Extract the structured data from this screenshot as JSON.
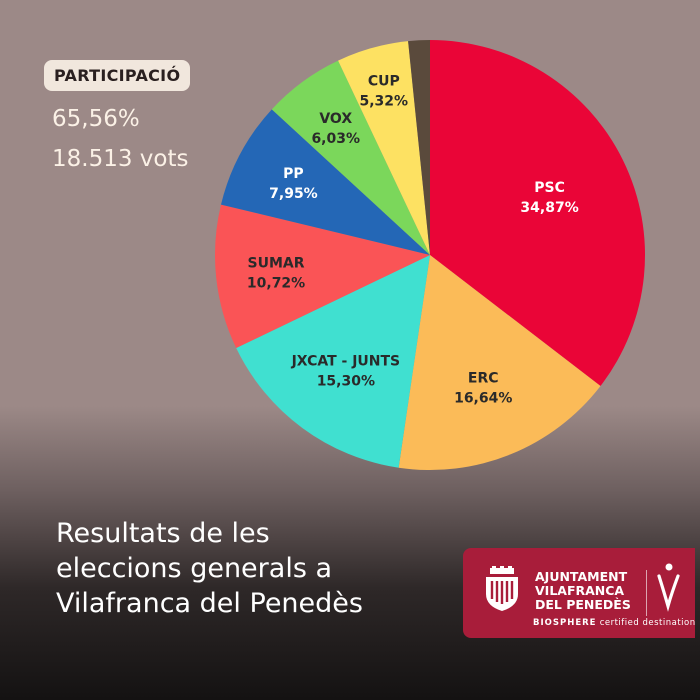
{
  "participation": {
    "badge_label": "PARTICIPACIÓ",
    "percentage": "65,56%",
    "votes": "18.513 vots"
  },
  "headline": {
    "line1": "Resultats de les",
    "line2": "eleccions generals a",
    "line3": "Vilafranca del Penedès"
  },
  "logo": {
    "org_line1": "AJUNTAMENT",
    "org_line2": "VILAFRANCA",
    "org_line3": "DEL PENEDÈS",
    "tag_strong": "BIOSPHERE",
    "tag_rest": "certified destination"
  },
  "chart_data": {
    "type": "pie",
    "title": "",
    "start_angle_deg": 0,
    "slices": [
      {
        "name": "PSC",
        "value": 34.87,
        "label": "34,87%",
        "color": "#ea0537"
      },
      {
        "name": "ERC",
        "value": 16.64,
        "label": "16,64%",
        "color": "#fbbb58"
      },
      {
        "name": "JXCAT - JUNTS",
        "value": 15.3,
        "label": "15,30%",
        "color": "#40e0d0"
      },
      {
        "name": "SUMAR",
        "value": 10.72,
        "label": "10,72%",
        "color": "#fa5456"
      },
      {
        "name": "PP",
        "value": 7.95,
        "label": "7,95%",
        "color": "#2467b6"
      },
      {
        "name": "VOX",
        "value": 6.03,
        "label": "6,03%",
        "color": "#7bd75b"
      },
      {
        "name": "CUP",
        "value": 5.32,
        "label": "5,32%",
        "color": "#fde162"
      },
      {
        "name": "",
        "value": 1.6,
        "label": "",
        "color": "#5a4a3c"
      }
    ]
  }
}
